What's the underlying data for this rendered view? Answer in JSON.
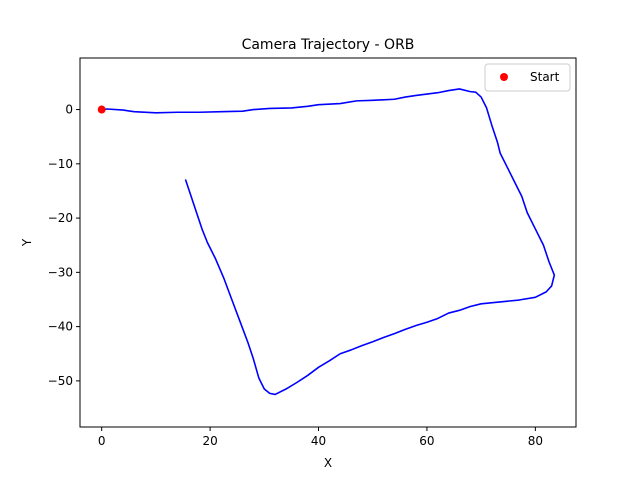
{
  "chart_data": {
    "type": "line",
    "title": "Camera Trajectory - ORB",
    "xlabel": "X",
    "ylabel": "Y",
    "xlim": [
      -4,
      87.5
    ],
    "ylim": [
      -58.5,
      9.5
    ],
    "xticks": [
      0,
      20,
      40,
      60,
      80
    ],
    "yticks": [
      0,
      -10,
      -20,
      -30,
      -40,
      -50
    ],
    "grid": false,
    "legend": "top-right",
    "series": [
      {
        "name": "",
        "color": "#0000ff",
        "points": [
          [
            0,
            0
          ],
          [
            1,
            0.1
          ],
          [
            4,
            -0.1
          ],
          [
            6,
            -0.4
          ],
          [
            10,
            -0.6
          ],
          [
            14,
            -0.5
          ],
          [
            18,
            -0.5
          ],
          [
            22,
            -0.4
          ],
          [
            26,
            -0.3
          ],
          [
            28,
            0
          ],
          [
            31,
            0.2
          ],
          [
            35,
            0.3
          ],
          [
            38,
            0.6
          ],
          [
            40,
            0.9
          ],
          [
            44,
            1.1
          ],
          [
            47,
            1.6
          ],
          [
            50,
            1.7
          ],
          [
            54,
            1.9
          ],
          [
            56,
            2.3
          ],
          [
            58,
            2.6
          ],
          [
            62,
            3.1
          ],
          [
            64,
            3.5
          ],
          [
            66,
            3.8
          ],
          [
            68,
            3.3
          ],
          [
            69,
            3.2
          ],
          [
            70,
            2.3
          ],
          [
            71,
            0.3
          ],
          [
            72,
            -3
          ],
          [
            73,
            -6
          ],
          [
            73.5,
            -8
          ],
          [
            74.5,
            -10
          ],
          [
            76,
            -13
          ],
          [
            77.5,
            -16
          ],
          [
            78.5,
            -19
          ],
          [
            80,
            -22
          ],
          [
            81.5,
            -25
          ],
          [
            82.5,
            -28
          ],
          [
            83.5,
            -30.5
          ],
          [
            83,
            -32.5
          ],
          [
            82,
            -33.6
          ],
          [
            80,
            -34.6
          ],
          [
            77,
            -35.1
          ],
          [
            73,
            -35.5
          ],
          [
            70,
            -35.8
          ],
          [
            68,
            -36.3
          ],
          [
            66,
            -37
          ],
          [
            64,
            -37.5
          ],
          [
            62,
            -38.5
          ],
          [
            60,
            -39.2
          ],
          [
            58,
            -39.8
          ],
          [
            56,
            -40.5
          ],
          [
            54,
            -41.3
          ],
          [
            52,
            -42
          ],
          [
            50,
            -42.8
          ],
          [
            48,
            -43.5
          ],
          [
            46,
            -44.3
          ],
          [
            44,
            -45
          ],
          [
            42,
            -46.3
          ],
          [
            40,
            -47.5
          ],
          [
            38,
            -49
          ],
          [
            36,
            -50.3
          ],
          [
            34,
            -51.5
          ],
          [
            32,
            -52.5
          ],
          [
            31,
            -52.3
          ],
          [
            30,
            -51.5
          ],
          [
            29,
            -49.5
          ],
          [
            28,
            -46
          ],
          [
            27,
            -43
          ],
          [
            25.5,
            -39
          ],
          [
            24,
            -35
          ],
          [
            22.5,
            -31
          ],
          [
            21,
            -27.5
          ],
          [
            19.5,
            -24.5
          ],
          [
            18.5,
            -22
          ],
          [
            17.5,
            -19
          ],
          [
            16.5,
            -16
          ],
          [
            15.5,
            -13
          ]
        ]
      },
      {
        "name": "Start",
        "color": "#ff0000",
        "type": "scatter",
        "points": [
          [
            0,
            0
          ]
        ]
      }
    ]
  }
}
